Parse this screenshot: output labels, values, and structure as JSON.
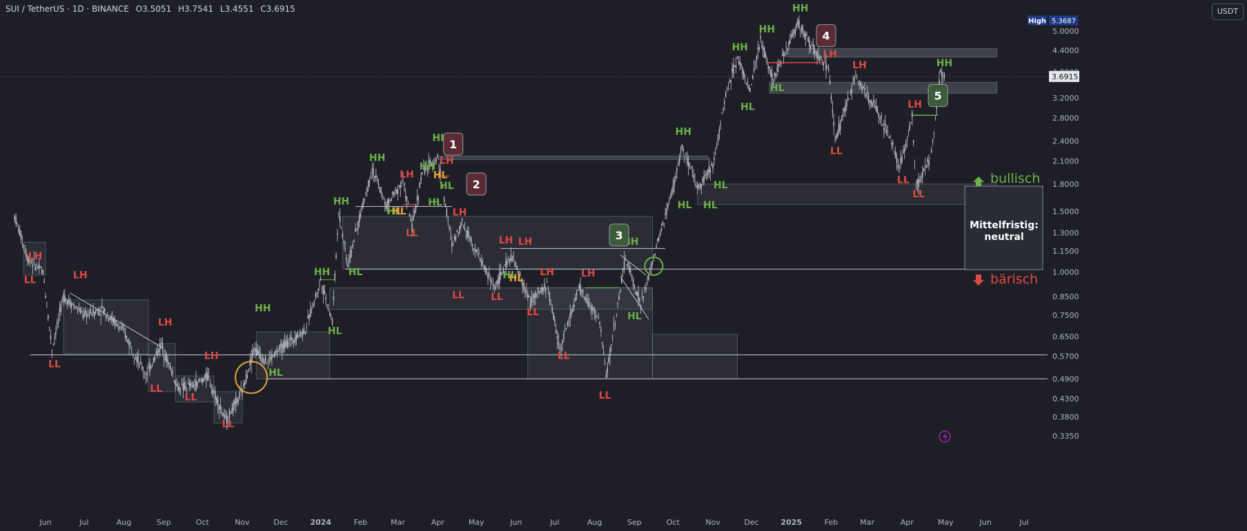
{
  "header": {
    "symbol": "SUI / TetherUS · 1D · BINANCE",
    "open": "O3.5051",
    "high": "H3.7541",
    "low": "L3.4551",
    "close": "C3.6915"
  },
  "currency_button": "USDT",
  "price_axis": {
    "ticks": [
      "5.0000",
      "4.4000",
      "3.2000",
      "2.8000",
      "2.4000",
      "2.1000",
      "1.8000",
      "1.5000",
      "1.3000",
      "1.1500",
      "1.0000",
      "0.8500",
      "0.7500",
      "0.6500",
      "0.5700",
      "0.4900",
      "0.4300",
      "0.3800",
      "0.3350"
    ],
    "high_badge_label": "High",
    "high_badge_value": "5.3687",
    "last_price": "3.6915",
    "partial_tick": "3.8000"
  },
  "time_axis": [
    "Jun",
    "Jul",
    "Aug",
    "Sep",
    "Oct",
    "Nov",
    "Dec",
    "2024",
    "Feb",
    "Mar",
    "Apr",
    "May",
    "Jun",
    "Jul",
    "Aug",
    "Sep",
    "Oct",
    "Nov",
    "Dec",
    "2025",
    "Feb",
    "Mar",
    "Apr",
    "May",
    "Jun",
    "Jul"
  ],
  "annotations": {
    "bullish": "bullisch",
    "bearish": "bärisch",
    "outlook": "Mittelfristig:\nneutral",
    "outlook_line1": "Mittelfristig:",
    "outlook_line2": "neutral",
    "callouts": [
      "1",
      "2",
      "3",
      "4",
      "5"
    ]
  },
  "colors": {
    "background": "#1e1f26",
    "higher": "#6cb04a",
    "lower": "#e04848",
    "neutral": "#e8a33a",
    "candle": "#c9cbd1",
    "zone": "#4a4d57"
  },
  "chart_data": {
    "type": "candlestick",
    "title": "SUI / TetherUS · 1D · BINANCE",
    "x_range": [
      "2023-05-15",
      "2025-07-20"
    ],
    "y_scale": "log",
    "ylim": [
      0.32,
      5.6
    ],
    "ohlc_last": {
      "open": 3.5051,
      "high": 3.7541,
      "low": 3.4551,
      "close": 3.6915
    },
    "all_time_high": 5.3687,
    "swing_points": [
      {
        "date": "2023-05-20",
        "price": 1.05,
        "label": "LH"
      },
      {
        "date": "2023-05-17",
        "price": 0.97,
        "label": "LL"
      },
      {
        "date": "2023-06-15",
        "price": 0.97,
        "label": "LH"
      },
      {
        "date": "2023-06-05",
        "price": 0.55,
        "label": "LL"
      },
      {
        "date": "2023-08-30",
        "price": 0.68,
        "label": "LH"
      },
      {
        "date": "2023-08-18",
        "price": 0.46,
        "label": "LL"
      },
      {
        "date": "2023-09-19",
        "price": 0.435,
        "label": "LL"
      },
      {
        "date": "2023-10-05",
        "price": 0.54,
        "label": "LH"
      },
      {
        "date": "2023-10-19",
        "price": 0.37,
        "label": "LL"
      },
      {
        "date": "2023-11-15",
        "price": 0.75,
        "label": "HH"
      },
      {
        "date": "2023-11-20",
        "price": 0.49,
        "label": "HL"
      },
      {
        "date": "2024-01-01",
        "price": 0.95,
        "label": "HH"
      },
      {
        "date": "2024-01-08",
        "price": 0.68,
        "label": "HL"
      },
      {
        "date": "2024-01-10",
        "price": 1.55,
        "label": "HH"
      },
      {
        "date": "2024-01-20",
        "price": 1.02,
        "label": "HL"
      },
      {
        "date": "2024-02-10",
        "price": 2.05,
        "label": "HH"
      },
      {
        "date": "2024-02-21",
        "price": 1.42,
        "label": "HL"
      },
      {
        "date": "2024-03-05",
        "price": 1.83,
        "label": "LH"
      },
      {
        "date": "2024-03-10",
        "price": 1.3,
        "label": "LL"
      },
      {
        "date": "2024-03-20",
        "price": 1.95,
        "label": "HH"
      },
      {
        "date": "2024-03-27",
        "price": 1.55,
        "label": "HL"
      },
      {
        "date": "2024-04-01",
        "price": 2.17,
        "label": "HH"
      },
      {
        "date": "2024-04-04",
        "price": 1.73,
        "label": "HL"
      },
      {
        "date": "2024-04-05",
        "price": 1.9,
        "label": "LH"
      },
      {
        "date": "2024-04-12",
        "price": 1.43,
        "label": "LH"
      },
      {
        "date": "2024-04-13",
        "price": 0.85,
        "label": "LL"
      },
      {
        "date": "2024-05-15",
        "price": 0.85,
        "label": "LL"
      },
      {
        "date": "2024-05-18",
        "price": 1.17,
        "label": "LH"
      },
      {
        "date": "2024-05-20",
        "price": 0.98,
        "label": "HL"
      },
      {
        "date": "2024-06-02",
        "price": 1.17,
        "label": "LH"
      },
      {
        "date": "2024-06-18",
        "price": 0.98,
        "label": "LH"
      },
      {
        "date": "2024-06-12",
        "price": 0.77,
        "label": "LL"
      },
      {
        "date": "2024-07-05",
        "price": 0.575,
        "label": "LL"
      },
      {
        "date": "2024-07-20",
        "price": 0.93,
        "label": "LH"
      },
      {
        "date": "2024-08-10",
        "price": 0.47,
        "label": "LL"
      },
      {
        "date": "2024-08-25",
        "price": 1.15,
        "label": "HH"
      },
      {
        "date": "2024-08-28",
        "price": 0.75,
        "label": "HL"
      },
      {
        "date": "2024-10-06",
        "price": 2.35,
        "label": "HH"
      },
      {
        "date": "2024-10-10",
        "price": 1.7,
        "label": "HL"
      },
      {
        "date": "2024-10-28",
        "price": 1.6,
        "label": "HL"
      },
      {
        "date": "2024-11-04",
        "price": 1.8,
        "label": "HL"
      },
      {
        "date": "2024-11-18",
        "price": 4.35,
        "label": "HH"
      },
      {
        "date": "2024-11-25",
        "price": 2.85,
        "label": "HL"
      },
      {
        "date": "2024-12-05",
        "price": 4.85,
        "label": "HH"
      },
      {
        "date": "2024-12-18",
        "price": 3.3,
        "label": "HL"
      },
      {
        "date": "2025-01-06",
        "price": 5.37,
        "label": "HH"
      },
      {
        "date": "2025-01-27",
        "price": 4.1,
        "label": "LH"
      },
      {
        "date": "2025-02-03",
        "price": 2.25,
        "label": "LL"
      },
      {
        "date": "2025-02-20",
        "price": 3.8,
        "label": "LH"
      },
      {
        "date": "2025-03-26",
        "price": 1.85,
        "label": "LL"
      },
      {
        "date": "2025-04-05",
        "price": 2.85,
        "label": "LH"
      },
      {
        "date": "2025-04-07",
        "price": 1.7,
        "label": "LL"
      },
      {
        "date": "2025-04-27",
        "price": 3.85,
        "label": "HH"
      }
    ],
    "levels": [
      1.02,
      0.57,
      0.49,
      1.15
    ],
    "callouts": [
      "1",
      "2",
      "3",
      "4",
      "5"
    ]
  }
}
